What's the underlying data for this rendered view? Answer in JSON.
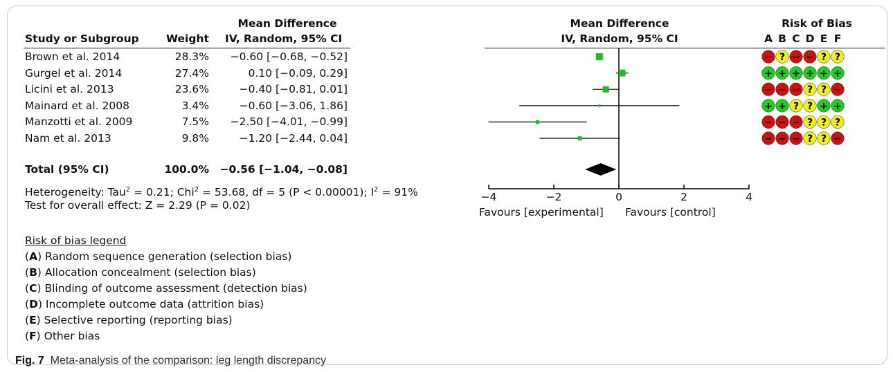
{
  "header": {
    "col_study": "Study or Subgroup",
    "col_weight": "Weight",
    "col_md_top": "Mean Difference",
    "col_md_bottom": "IV, Random, 95% CI",
    "plot_md_top": "Mean Difference",
    "plot_md_bottom": "IV, Random, 95% CI",
    "rob_title": "Risk of Bias",
    "rob_letters": [
      "A",
      "B",
      "C",
      "D",
      "E",
      "F"
    ]
  },
  "chart_data": {
    "type": "forest",
    "x_ticks": [
      {
        "value": -4,
        "label": "−4"
      },
      {
        "value": -2,
        "label": "−2"
      },
      {
        "value": 0,
        "label": "0"
      },
      {
        "value": 2,
        "label": "2"
      },
      {
        "value": 4,
        "label": "4"
      }
    ],
    "xlim": [
      -4,
      4
    ],
    "favours_left": "Favours [experimental]",
    "favours_right": "Favours [control]",
    "studies": [
      {
        "name": "Brown et al. 2014",
        "weight": "28.3%",
        "weight_value": 28.3,
        "ci_text": "−0.60 [−0.68, −0.52]",
        "mean": -0.6,
        "lower": -0.68,
        "upper": -0.52,
        "rob": [
          "-",
          "?",
          "-",
          "-",
          "?",
          "?"
        ]
      },
      {
        "name": "Gurgel et al. 2014",
        "weight": "27.4%",
        "weight_value": 27.4,
        "ci_text": "0.10 [−0.09, 0.29]",
        "mean": 0.1,
        "lower": -0.09,
        "upper": 0.29,
        "rob": [
          "+",
          "+",
          "+",
          "+",
          "+",
          "+"
        ]
      },
      {
        "name": "Licini et al. 2013",
        "weight": "23.6%",
        "weight_value": 23.6,
        "ci_text": "−0.40 [−0.81, 0.01]",
        "mean": -0.4,
        "lower": -0.81,
        "upper": 0.01,
        "rob": [
          "-",
          "-",
          "-",
          "?",
          "?",
          "-"
        ]
      },
      {
        "name": "Mainard et al. 2008",
        "weight": "3.4%",
        "weight_value": 3.4,
        "ci_text": "−0.60 [−3.06, 1.86]",
        "mean": -0.6,
        "lower": -3.06,
        "upper": 1.86,
        "rob": [
          "+",
          "+",
          "?",
          "?",
          "+",
          "+"
        ]
      },
      {
        "name": "Manzotti et al. 2009",
        "weight": "7.5%",
        "weight_value": 7.5,
        "ci_text": "−2.50 [−4.01, −0.99]",
        "mean": -2.5,
        "lower": -4.01,
        "upper": -0.99,
        "rob": [
          "-",
          "-",
          "-",
          "?",
          "?",
          "?"
        ]
      },
      {
        "name": "Nam et al. 2013",
        "weight": "9.8%",
        "weight_value": 9.8,
        "ci_text": "−1.20 [−2.44, 0.04]",
        "mean": -1.2,
        "lower": -2.44,
        "upper": 0.04,
        "rob": [
          "-",
          "-",
          "-",
          "?",
          "?",
          "-"
        ]
      }
    ],
    "total": {
      "name": "Total (95% CI)",
      "weight": "100.0%",
      "ci_text": "−0.56 [−1.04, −0.08]",
      "mean": -0.56,
      "lower": -1.04,
      "upper": -0.08
    },
    "colors": {
      "square": "#22bb22",
      "diamond": "#000000",
      "rob_low": "#22cc22",
      "rob_high": "#cc1111",
      "rob_unclear": "#eeee22"
    }
  },
  "heterogeneity": {
    "p1": "Heterogeneity: Tau",
    "s1": "2",
    "p2": " = 0.21; Chi",
    "s2": "2",
    "p3": " = 53.68, df = 5 (P < 0.00001); I",
    "s3": "2",
    "p4": " = 91%"
  },
  "overall_effect": "Test for overall effect: Z = 2.29 (P = 0.02)",
  "legend": {
    "title": "Risk of bias legend",
    "items": [
      {
        "letter": "A",
        "text": " Random sequence generation (selection bias)"
      },
      {
        "letter": "B",
        "text": " Allocation concealment (selection bias)"
      },
      {
        "letter": "C",
        "text": " Blinding of outcome assessment (detection bias)"
      },
      {
        "letter": "D",
        "text": " Incomplete outcome data (attrition bias)"
      },
      {
        "letter": "E",
        "text": " Selective reporting (reporting bias)"
      },
      {
        "letter": "F",
        "text": " Other bias"
      }
    ]
  },
  "caption": {
    "label": "Fig. 7",
    "text": "Meta-analysis of the comparison: leg length discrepancy"
  }
}
